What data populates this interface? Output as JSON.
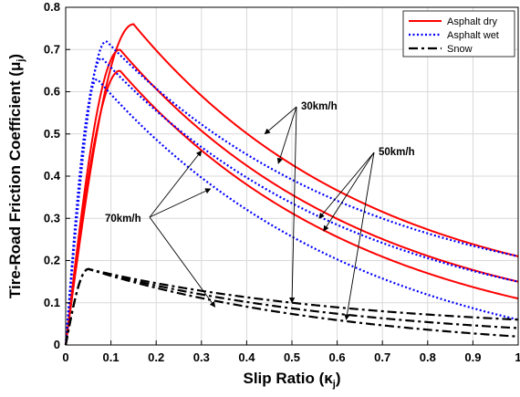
{
  "chart_data": {
    "type": "line",
    "xlabel": "Slip Ratio (κ",
    "xlabel_sub": "j",
    "xlabel_close": ")",
    "ylabel": "Tire-Road Friction Coefficient (μ",
    "ylabel_sub": "j",
    "ylabel_close": ")",
    "xlim": [
      0,
      1
    ],
    "ylim": [
      0,
      0.8
    ],
    "xticks": [
      "0",
      "0.1",
      "0.2",
      "0.3",
      "0.4",
      "0.5",
      "0.6",
      "0.7",
      "0.8",
      "0.9",
      "1"
    ],
    "yticks": [
      "0",
      "0.1",
      "0.2",
      "0.3",
      "0.4",
      "0.5",
      "0.6",
      "0.7",
      "0.8"
    ],
    "grid": true,
    "legend_position": "top-right",
    "legend": [
      {
        "label": "Asphalt dry",
        "color": "#ff0000",
        "style": "solid"
      },
      {
        "label": "Asphalt wet",
        "color": "#0000ff",
        "style": "dotted"
      },
      {
        "label": "Snow",
        "color": "#000000",
        "style": "dashdot"
      }
    ],
    "series": [
      {
        "group": "Asphalt dry",
        "speed_kmh": 30,
        "peak": [
          0.15,
          0.76
        ],
        "end": 0.21
      },
      {
        "group": "Asphalt dry",
        "speed_kmh": 50,
        "peak": [
          0.12,
          0.7
        ],
        "end": 0.15
      },
      {
        "group": "Asphalt dry",
        "speed_kmh": 70,
        "peak": [
          0.12,
          0.65
        ],
        "end": 0.11
      },
      {
        "group": "Asphalt wet",
        "speed_kmh": 30,
        "peak": [
          0.09,
          0.72
        ],
        "end": 0.21
      },
      {
        "group": "Asphalt wet",
        "speed_kmh": 50,
        "peak": [
          0.08,
          0.68
        ],
        "end": 0.15
      },
      {
        "group": "Asphalt wet",
        "speed_kmh": 70,
        "peak": [
          0.07,
          0.63
        ],
        "end": 0.06
      },
      {
        "group": "Snow",
        "speed_kmh": 30,
        "peak": [
          0.05,
          0.18
        ],
        "end": 0.06
      },
      {
        "group": "Snow",
        "speed_kmh": 50,
        "peak": [
          0.05,
          0.18
        ],
        "end": 0.04
      },
      {
        "group": "Snow",
        "speed_kmh": 70,
        "peak": [
          0.05,
          0.18
        ],
        "end": 0.02
      }
    ],
    "annotations": [
      {
        "text": "30km/h",
        "arrow_targets": [
          [
            0.44,
            0.5
          ],
          [
            0.47,
            0.43
          ],
          [
            0.5,
            0.1
          ]
        ]
      },
      {
        "text": "50km/h",
        "arrow_targets": [
          [
            0.56,
            0.3
          ],
          [
            0.57,
            0.27
          ],
          [
            0.62,
            0.06
          ]
        ]
      },
      {
        "text": "70km/h",
        "arrow_targets": [
          [
            0.3,
            0.46
          ],
          [
            0.32,
            0.37
          ],
          [
            0.33,
            0.09
          ]
        ]
      }
    ]
  }
}
